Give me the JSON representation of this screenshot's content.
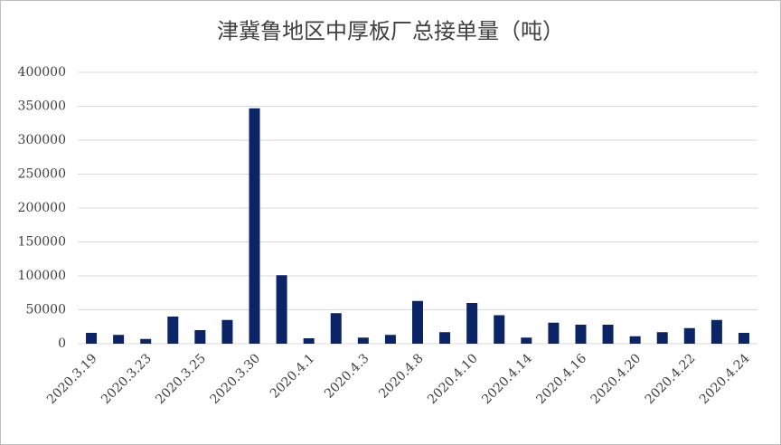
{
  "chart_data": {
    "type": "bar",
    "title": "津冀鲁地区中厚板厂总接单量（吨）",
    "categories": [
      "2020.3.19",
      null,
      "2020.3.23",
      null,
      "2020.3.25",
      null,
      "2020.3.30",
      null,
      "2020.4.1",
      null,
      "2020.4.3",
      null,
      "2020.4.8",
      null,
      "2020.4.10",
      null,
      "2020.4.14",
      null,
      "2020.4.16",
      null,
      "2020.4.20",
      null,
      "2020.4.22",
      null,
      "2020.4.24"
    ],
    "values": [
      16000,
      13000,
      7000,
      40000,
      20000,
      35000,
      347000,
      101000,
      8000,
      45000,
      9000,
      13000,
      63000,
      17000,
      60000,
      42000,
      9000,
      31000,
      28000,
      28000,
      11000,
      17000,
      23000,
      35000,
      16000
    ],
    "color": "#0b2466",
    "ylim": [
      0,
      400000
    ],
    "yticks": [
      0,
      50000,
      100000,
      150000,
      200000,
      250000,
      300000,
      350000,
      400000
    ],
    "grid": true
  }
}
